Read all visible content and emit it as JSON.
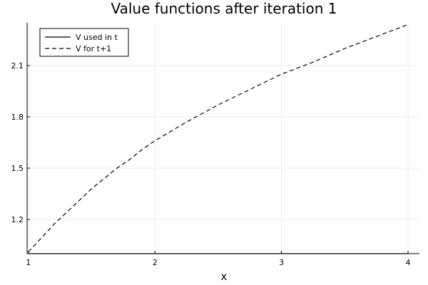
{
  "chart_data": {
    "type": "line",
    "title": "Value functions after iteration 1",
    "xlabel": "x",
    "ylabel": "",
    "xlim": [
      0.99,
      4.09
    ],
    "ylim": [
      1.0,
      2.35
    ],
    "x_ticks": [
      1,
      2,
      3,
      4
    ],
    "x_tick_labels": [
      "1",
      "2",
      "3",
      "4"
    ],
    "y_ticks": [
      1.2,
      1.5,
      1.8,
      2.1
    ],
    "y_tick_labels": [
      "1.2",
      "1.5",
      "1.8",
      "2.1"
    ],
    "grid": true,
    "legend_position": "top-left",
    "series": [
      {
        "name": "V used in t",
        "style": "solid",
        "color": "#000000",
        "x": [
          1.0,
          1.5,
          2.0,
          2.5,
          3.0,
          3.5,
          4.0
        ],
        "y": [
          1.0,
          1.0,
          1.0,
          1.0,
          1.0,
          1.0,
          1.0
        ]
      },
      {
        "name": "V for t+1",
        "style": "dashed",
        "color": "#000000",
        "x": [
          1.0,
          1.1,
          1.2,
          1.3,
          1.4,
          1.5,
          1.6,
          1.7,
          1.8,
          1.9,
          2.0,
          2.25,
          2.5,
          2.75,
          3.0,
          3.25,
          3.5,
          3.75,
          4.0
        ],
        "y": [
          1.01,
          1.09,
          1.17,
          1.24,
          1.31,
          1.38,
          1.44,
          1.5,
          1.55,
          1.61,
          1.66,
          1.77,
          1.87,
          1.96,
          2.05,
          2.12,
          2.2,
          2.27,
          2.34
        ]
      }
    ]
  }
}
